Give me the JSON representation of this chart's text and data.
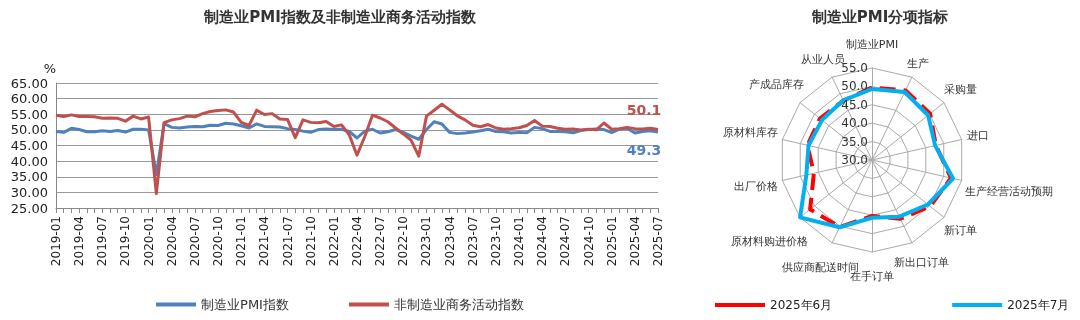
{
  "chart_data": [
    {
      "type": "line",
      "title": "制造业PMI指数及非制造业商务活动指数",
      "ylabel": "%",
      "categories": [
        "2019-01",
        null,
        null,
        "2019-04",
        null,
        null,
        "2019-07",
        null,
        null,
        "2019-10",
        null,
        null,
        "2020-01",
        null,
        null,
        "2020-04",
        null,
        null,
        "2020-07",
        null,
        null,
        "2020-10",
        null,
        null,
        "2021-01",
        null,
        null,
        "2021-04",
        null,
        null,
        "2021-07",
        null,
        null,
        "2021-10",
        null,
        null,
        "2022-01",
        null,
        null,
        "2022-04",
        null,
        null,
        "2022-07",
        null,
        null,
        "2022-10",
        null,
        null,
        "2023-01",
        null,
        null,
        "2023-04",
        null,
        null,
        "2023-07",
        null,
        null,
        "2023-10",
        null,
        null,
        "2024-01",
        null,
        null,
        "2024-04",
        null,
        null,
        "2024-07",
        null,
        null,
        "2024-10",
        null,
        null,
        "2025-01",
        null,
        null,
        "2025-04",
        null,
        null,
        "2025-07"
      ],
      "series": [
        {
          "name": "制造业PMI指数",
          "color": "#4f81bd",
          "values": [
            49.5,
            49.2,
            50.5,
            50.1,
            49.4,
            49.4,
            49.7,
            49.5,
            49.8,
            49.3,
            50.2,
            50.2,
            50.0,
            35.7,
            52.0,
            50.8,
            50.6,
            50.9,
            51.1,
            51.0,
            51.5,
            51.4,
            52.1,
            51.9,
            51.3,
            50.6,
            51.9,
            51.1,
            51.0,
            50.9,
            50.4,
            50.1,
            49.6,
            49.2,
            50.1,
            50.3,
            50.1,
            50.2,
            49.5,
            47.4,
            49.6,
            50.2,
            49.0,
            49.4,
            50.1,
            49.2,
            48.0,
            47.0,
            50.1,
            52.6,
            51.9,
            49.2,
            48.8,
            49.0,
            49.3,
            49.7,
            50.2,
            49.5,
            49.4,
            49.0,
            49.2,
            49.1,
            50.8,
            50.4,
            49.5,
            49.5,
            49.4,
            49.1,
            49.8,
            50.1,
            50.3,
            50.1,
            49.1,
            50.2,
            50.5,
            49.0,
            49.5,
            49.7,
            49.3
          ],
          "value_labels": [
            null,
            null,
            null,
            null,
            null,
            null,
            null,
            null,
            null,
            null,
            null,
            null,
            null,
            null,
            null,
            null,
            null,
            null,
            null,
            null,
            null,
            null,
            null,
            null,
            null,
            null,
            null,
            null,
            null,
            null,
            null,
            null,
            null,
            null,
            null,
            null,
            null,
            null,
            null,
            null,
            null,
            null,
            null,
            null,
            null,
            null,
            null,
            null,
            null,
            null,
            null,
            null,
            null,
            null,
            null,
            null,
            null,
            null,
            null,
            null,
            null,
            null,
            null,
            null,
            null,
            null,
            null,
            null,
            null,
            null,
            null,
            null,
            null,
            null,
            null,
            null,
            null,
            null,
            "49.3"
          ]
        },
        {
          "name": "非制造业商务活动指数",
          "color": "#c0504d",
          "values": [
            54.7,
            54.3,
            54.8,
            54.3,
            54.3,
            54.2,
            53.7,
            53.8,
            53.7,
            52.8,
            54.4,
            53.5,
            54.1,
            29.6,
            52.3,
            53.2,
            53.6,
            54.4,
            54.2,
            55.2,
            55.9,
            56.2,
            56.4,
            55.7,
            52.4,
            51.4,
            56.3,
            54.9,
            55.2,
            53.5,
            53.3,
            47.5,
            53.2,
            52.4,
            52.3,
            52.7,
            51.1,
            51.6,
            48.4,
            41.9,
            47.8,
            54.7,
            53.8,
            52.6,
            50.6,
            48.7,
            46.7,
            41.6,
            54.4,
            56.3,
            58.2,
            56.4,
            54.5,
            53.2,
            51.5,
            51.0,
            51.7,
            50.6,
            50.2,
            50.4,
            50.7,
            51.4,
            53.0,
            51.2,
            51.1,
            50.5,
            50.2,
            50.3,
            50.0,
            50.2,
            50.0,
            52.2,
            50.2,
            50.4,
            50.8,
            50.4,
            50.3,
            50.5,
            50.1
          ],
          "value_labels": [
            null,
            null,
            null,
            null,
            null,
            null,
            null,
            null,
            null,
            null,
            null,
            null,
            null,
            null,
            null,
            null,
            null,
            null,
            null,
            null,
            null,
            null,
            null,
            null,
            null,
            null,
            null,
            null,
            null,
            null,
            null,
            null,
            null,
            null,
            null,
            null,
            null,
            null,
            null,
            null,
            null,
            null,
            null,
            null,
            null,
            null,
            null,
            null,
            null,
            null,
            null,
            null,
            null,
            null,
            null,
            null,
            null,
            null,
            null,
            null,
            null,
            null,
            null,
            null,
            null,
            null,
            null,
            null,
            null,
            null,
            null,
            null,
            null,
            null,
            null,
            null,
            null,
            null,
            "50.1"
          ]
        }
      ],
      "ylim": [
        25,
        65
      ],
      "yticks": [
        {
          "value": 25,
          "label": "25.00"
        },
        {
          "value": 30,
          "label": "30.00"
        },
        {
          "value": 35,
          "label": "35.00"
        },
        {
          "value": 40,
          "label": "40.00"
        },
        {
          "value": 45,
          "label": "45.00"
        },
        {
          "value": 50,
          "label": "50.00"
        },
        {
          "value": 55,
          "label": "55.00"
        },
        {
          "value": 60,
          "label": "60.00"
        },
        {
          "value": 65,
          "label": "65.00"
        }
      ],
      "grid": "y",
      "legend": "bottom",
      "marker": "none"
    },
    {
      "type": "radar",
      "title": "制造业PMI分项指标",
      "categories": [
        "制造业PMI",
        "生产",
        "采购量",
        "进口",
        "生产经营活动预期",
        "新订单",
        "新出口订单",
        "在手订单",
        "供应商配送时间",
        "原材料购进价格",
        "出厂价格",
        "原材料库存",
        "产成品库存",
        "从业人员"
      ],
      "series": [
        {
          "name": "2025年6月",
          "color": "#ff0000",
          "line_style": "dashed",
          "values": [
            49.7,
            51.0,
            50.2,
            47.8,
            52.0,
            50.2,
            47.7,
            45.2,
            50.2,
            51.5,
            46.2,
            48.0,
            48.1,
            47.9
          ]
        },
        {
          "name": "2025年7月",
          "color": "#00b0f0",
          "line_style": "solid",
          "values": [
            49.3,
            50.5,
            49.5,
            47.6,
            52.6,
            49.4,
            47.1,
            45.7,
            50.3,
            55.0,
            48.3,
            47.7,
            47.4,
            48.0
          ]
        }
      ],
      "ylim": [
        30,
        55
      ],
      "yticks": [
        {
          "value": 30,
          "label": "30.0"
        },
        {
          "value": 35,
          "label": "35.0"
        },
        {
          "value": 40,
          "label": "40.0"
        },
        {
          "value": 45,
          "label": "45.0"
        },
        {
          "value": 50,
          "label": "50.0"
        },
        {
          "value": 55,
          "label": "55.0"
        }
      ],
      "grid": true,
      "legend": "bottom",
      "marker": "none"
    }
  ]
}
